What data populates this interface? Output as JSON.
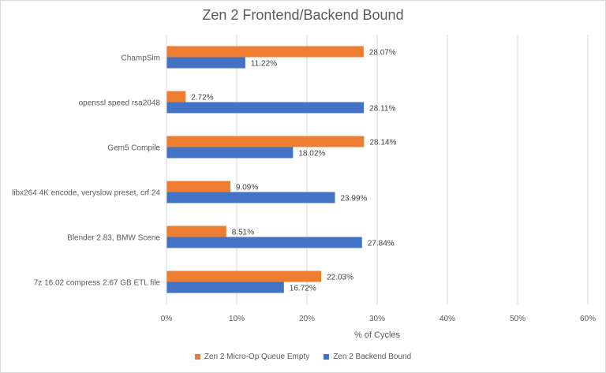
{
  "chart_data": {
    "type": "bar",
    "orientation": "horizontal",
    "title": "Zen 2 Frontend/Backend Bound",
    "xlabel": "% of Cycles",
    "ylabel": "",
    "xlim": [
      0,
      60
    ],
    "x_ticks": [
      "0%",
      "10%",
      "20%",
      "30%",
      "40%",
      "50%",
      "60%"
    ],
    "grid": true,
    "legend_position": "bottom",
    "categories": [
      "ChampSim",
      "openssl speed rsa2048",
      "Gem5 Compile",
      "libx264 4K encode, veryslow preset, crf 24",
      "Blender 2.83, BMW Scene",
      "7z 16.02 compress 2.67 GB ETL file"
    ],
    "series": [
      {
        "name": "Zen 2 Micro-Op Queue Empty",
        "color": "#ed7d31",
        "values": [
          28.07,
          2.72,
          28.14,
          9.09,
          8.51,
          22.03
        ],
        "labels": [
          "28.07%",
          "2.72%",
          "28.14%",
          "9.09%",
          "8.51%",
          "22.03%"
        ]
      },
      {
        "name": "Zen 2 Backend Bound",
        "color": "#4472c4",
        "values": [
          11.22,
          28.11,
          18.02,
          23.99,
          27.84,
          16.72
        ],
        "labels": [
          "11.22%",
          "28.11%",
          "18.02%",
          "23.99%",
          "27.84%",
          "16.72%"
        ]
      }
    ]
  }
}
